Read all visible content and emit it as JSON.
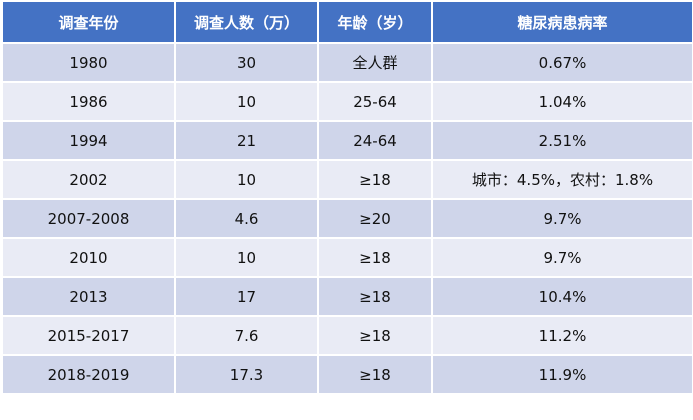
{
  "table": {
    "header": [
      "调查年份",
      "调查人数（万）",
      "年龄（岁）",
      "糖尿病患病率"
    ],
    "rows": [
      [
        "1980",
        "30",
        "全人群",
        "0.67%"
      ],
      [
        "1986",
        "10",
        "25-64",
        "1.04%"
      ],
      [
        "1994",
        "21",
        "24-64",
        "2.51%"
      ],
      [
        "2002",
        "10",
        "≥18",
        "城市：4.5%，农村：1.8%"
      ],
      [
        "2007-2008",
        "4.6",
        "≥20",
        "9.7%"
      ],
      [
        "2010",
        "10",
        "≥18",
        "9.7%"
      ],
      [
        "2013",
        "17",
        "≥18",
        "10.4%"
      ],
      [
        "2015-2017",
        "7.6",
        "≥18",
        "11.2%"
      ],
      [
        "2018-2019",
        "17.3",
        "≥18",
        "11.9%"
      ]
    ]
  }
}
